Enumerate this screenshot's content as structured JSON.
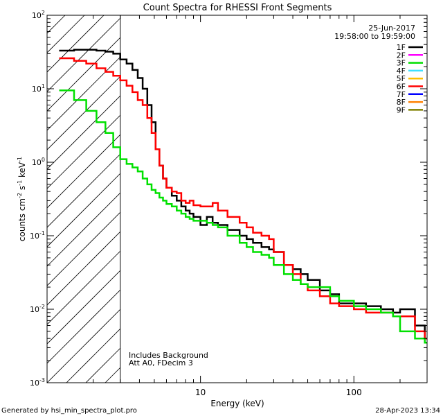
{
  "chart_data": {
    "type": "line",
    "title": "Count Spectra for RHESSI Front Segments",
    "xlabel": "Energy (keV)",
    "ylabel_parts": [
      "counts cm",
      "-2",
      " s",
      "-1",
      " keV",
      "-1"
    ],
    "x_scale": "log",
    "y_scale": "log",
    "xlim": [
      1.0,
      300
    ],
    "ylim": [
      0.001,
      100
    ],
    "x_major_ticks": [
      {
        "v": 10,
        "label": "10"
      },
      {
        "v": 100,
        "label": "100"
      }
    ],
    "y_major_ticks": [
      {
        "v": 0.001,
        "base": "10",
        "exp": "-3"
      },
      {
        "v": 0.01,
        "base": "10",
        "exp": "-2"
      },
      {
        "v": 0.1,
        "base": "10",
        "exp": "-1"
      },
      {
        "v": 1,
        "base": "10",
        "exp": "0"
      },
      {
        "v": 10,
        "base": "10",
        "exp": "1"
      },
      {
        "v": 100,
        "base": "10",
        "exp": "2"
      }
    ],
    "date": "25-Jun-2017",
    "time_range": "19:58:00 to 19:59:00",
    "legend": [
      {
        "name": "1F",
        "color": "#000000"
      },
      {
        "name": "2F",
        "color": "#ff00ff"
      },
      {
        "name": "3F",
        "color": "#00e000"
      },
      {
        "name": "4F",
        "color": "#40e0ff"
      },
      {
        "name": "5F",
        "color": "#ffc000"
      },
      {
        "name": "6F",
        "color": "#ff0000"
      },
      {
        "name": "7F",
        "color": "#0000ff"
      },
      {
        "name": "8F",
        "color": "#ff8000"
      },
      {
        "name": "9F",
        "color": "#808000"
      }
    ],
    "shaded_region_xmax": 3.0,
    "annotations": [
      "Includes Background",
      "Att A0, FDecim 3"
    ],
    "series": [
      {
        "name": "1F",
        "color": "#000000",
        "x": [
          1.2,
          1.5,
          1.8,
          2.1,
          2.4,
          2.7,
          3.0,
          3.3,
          3.6,
          3.9,
          4.2,
          4.5,
          4.8,
          5.1,
          5.4,
          5.7,
          6.0,
          6.5,
          7.0,
          7.5,
          8.0,
          8.5,
          9.0,
          10.0,
          11.0,
          12.0,
          13.0,
          15.0,
          18.0,
          20.0,
          22.0,
          25.0,
          28.0,
          30.0,
          35.0,
          40.0,
          45.0,
          50.0,
          60.0,
          70.0,
          80.0,
          100.0,
          120.0,
          150.0,
          180.0,
          200.0,
          250.0,
          290.0
        ],
        "y": [
          33,
          34,
          34,
          33,
          32,
          30,
          25,
          22,
          18,
          14,
          10,
          6,
          3.5,
          1.5,
          0.9,
          0.6,
          0.45,
          0.35,
          0.3,
          0.25,
          0.22,
          0.2,
          0.18,
          0.14,
          0.18,
          0.15,
          0.14,
          0.12,
          0.1,
          0.09,
          0.08,
          0.07,
          0.065,
          0.06,
          0.04,
          0.035,
          0.03,
          0.025,
          0.018,
          0.016,
          0.012,
          0.012,
          0.011,
          0.01,
          0.009,
          0.01,
          0.006,
          0.004
        ]
      },
      {
        "name": "6F",
        "color": "#ff0000",
        "x": [
          1.2,
          1.5,
          1.8,
          2.1,
          2.4,
          2.7,
          3.0,
          3.3,
          3.6,
          3.9,
          4.2,
          4.5,
          4.8,
          5.1,
          5.4,
          5.7,
          6.0,
          6.5,
          7.0,
          7.5,
          8.0,
          8.5,
          9.0,
          10.0,
          11.0,
          12.0,
          13.0,
          15.0,
          18.0,
          20.0,
          22.0,
          25.0,
          28.0,
          30.0,
          35.0,
          40.0,
          45.0,
          50.0,
          60.0,
          70.0,
          80.0,
          100.0,
          120.0,
          150.0,
          180.0,
          200.0,
          250.0,
          290.0
        ],
        "y": [
          26,
          24,
          22,
          19,
          17,
          15,
          13,
          11,
          9,
          7,
          6,
          4,
          2.5,
          1.5,
          0.9,
          0.6,
          0.45,
          0.4,
          0.38,
          0.3,
          0.28,
          0.3,
          0.26,
          0.25,
          0.25,
          0.28,
          0.22,
          0.18,
          0.15,
          0.13,
          0.11,
          0.1,
          0.09,
          0.06,
          0.04,
          0.03,
          0.022,
          0.018,
          0.015,
          0.012,
          0.011,
          0.01,
          0.009,
          0.009,
          0.008,
          0.008,
          0.005,
          0.004
        ]
      },
      {
        "name": "3F",
        "color": "#00e000",
        "x": [
          1.2,
          1.5,
          1.8,
          2.1,
          2.4,
          2.7,
          3.0,
          3.3,
          3.6,
          3.9,
          4.2,
          4.5,
          4.8,
          5.1,
          5.4,
          5.7,
          6.0,
          6.5,
          7.0,
          7.5,
          8.0,
          8.5,
          9.0,
          10.0,
          11.0,
          12.0,
          13.0,
          15.0,
          18.0,
          20.0,
          22.0,
          25.0,
          28.0,
          30.0,
          35.0,
          40.0,
          45.0,
          50.0,
          60.0,
          70.0,
          80.0,
          100.0,
          120.0,
          150.0,
          180.0,
          200.0,
          250.0,
          290.0
        ],
        "y": [
          9.5,
          7,
          5,
          3.5,
          2.5,
          1.6,
          1.1,
          0.95,
          0.85,
          0.75,
          0.6,
          0.5,
          0.42,
          0.38,
          0.33,
          0.3,
          0.27,
          0.25,
          0.22,
          0.2,
          0.18,
          0.17,
          0.16,
          0.16,
          0.15,
          0.14,
          0.13,
          0.1,
          0.08,
          0.07,
          0.06,
          0.055,
          0.05,
          0.04,
          0.03,
          0.025,
          0.022,
          0.02,
          0.02,
          0.015,
          0.013,
          0.011,
          0.01,
          0.009,
          0.008,
          0.005,
          0.004,
          0.0035
        ]
      }
    ]
  },
  "footer": {
    "generated_by": "Generated by hsi_min_spectra_plot.pro",
    "timestamp": "28-Apr-2023 13:34"
  }
}
